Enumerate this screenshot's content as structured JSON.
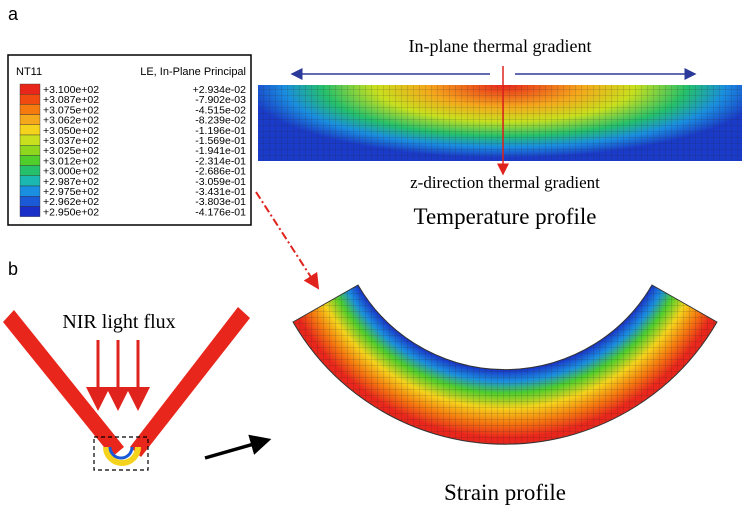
{
  "panel_a": {
    "label": "a",
    "legend": {
      "variable": "NT11",
      "strain_header": "LE, In-Plane Principal",
      "temperatures": [
        "+3.100e+02",
        "+3.087e+02",
        "+3.075e+02",
        "+3.062e+02",
        "+3.050e+02",
        "+3.037e+02",
        "+3.025e+02",
        "+3.012e+02",
        "+3.000e+02",
        "+2.987e+02",
        "+2.975e+02",
        "+2.962e+02",
        "+2.950e+02"
      ],
      "strains": [
        "+2.934e-02",
        "-7.902e-03",
        "-4.515e-02",
        "-8.239e-02",
        "-1.196e-01",
        "-1.569e-01",
        "-1.941e-01",
        "-2.314e-01",
        "-2.686e-01",
        "-3.059e-01",
        "-3.431e-01",
        "-3.803e-01",
        "-4.176e-01"
      ]
    },
    "in_plane_label": "In-plane thermal gradient",
    "z_label": "z-direction thermal gradient",
    "title": "Temperature profile"
  },
  "panel_b": {
    "label": "b",
    "light_label": "NIR light flux",
    "title": "Strain profile"
  }
}
